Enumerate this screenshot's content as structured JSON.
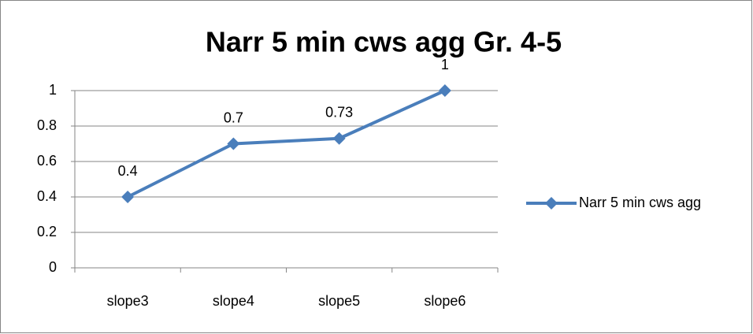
{
  "chart_data": {
    "type": "line",
    "title": "Narr 5 min cws agg Gr. 4-5",
    "categories": [
      "slope3",
      "slope4",
      "slope5",
      "slope6"
    ],
    "series": [
      {
        "name": "Narr 5 min cws agg",
        "color": "#4a7ebb",
        "values": [
          0.4,
          0.7,
          0.73,
          1
        ]
      }
    ],
    "ylim": [
      0,
      1
    ],
    "yticks": [
      0,
      0.2,
      0.4,
      0.6,
      0.8,
      1
    ],
    "grid": true,
    "legend": "right",
    "data_labels": true
  }
}
